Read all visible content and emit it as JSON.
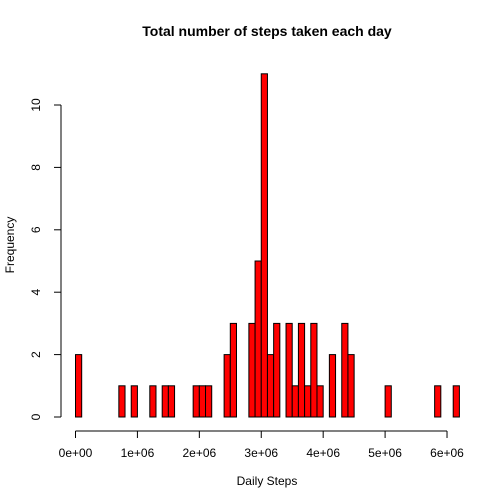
{
  "chart_data": {
    "type": "bar",
    "title": "Total number of steps taken each day",
    "xlabel": "Daily Steps",
    "ylabel": "Frequency",
    "bar_color": "#ff0000",
    "bar_border_color": "#000000",
    "bin_width": 100000,
    "bin_start": 0,
    "xlim": [
      0,
      6200000
    ],
    "ylim": [
      0,
      11
    ],
    "x_ticks": [
      0,
      1000000,
      2000000,
      3000000,
      4000000,
      5000000,
      6000000
    ],
    "x_tick_labels": [
      "0e+00",
      "1e+06",
      "2e+06",
      "3e+06",
      "4e+06",
      "5e+06",
      "6e+06"
    ],
    "y_ticks": [
      0,
      2,
      4,
      6,
      8,
      10
    ],
    "y_tick_labels": [
      "0",
      "2",
      "4",
      "6",
      "8",
      "10"
    ],
    "values": [
      2,
      0,
      0,
      0,
      0,
      0,
      0,
      1,
      0,
      1,
      0,
      0,
      1,
      0,
      1,
      1,
      0,
      0,
      0,
      1,
      1,
      1,
      0,
      0,
      2,
      3,
      0,
      0,
      3,
      5,
      11,
      2,
      3,
      0,
      3,
      1,
      3,
      1,
      3,
      1,
      0,
      2,
      0,
      3,
      2,
      0,
      0,
      0,
      0,
      0,
      1,
      0,
      0,
      0,
      0,
      0,
      0,
      0,
      1,
      0,
      0,
      1
    ],
    "grid": false,
    "legend": "none"
  }
}
